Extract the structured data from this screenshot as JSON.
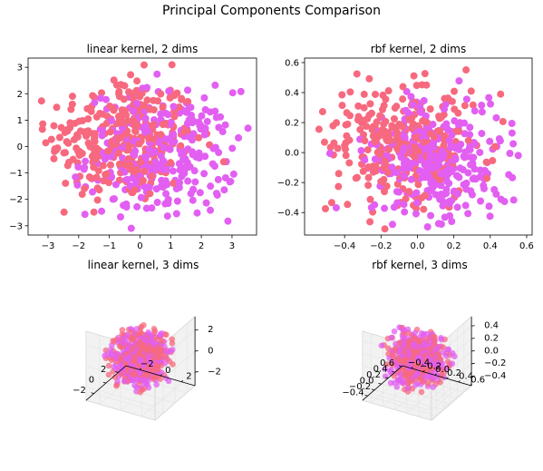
{
  "figure": {
    "suptitle": "Principal Components Comparison"
  },
  "colors": {
    "class_a": "#f7697e",
    "class_b": "#e25ff2",
    "axis": "#000000",
    "pane": "#f2f2f2",
    "pane_edge": "#cfcfcf",
    "grid": "#e6e6e6"
  },
  "chart_data": [
    {
      "type": "scatter",
      "title": "linear kernel, 2 dims",
      "xlabel": "",
      "ylabel": "",
      "xlim": [
        -3.65,
        3.8
      ],
      "ylim": [
        -3.35,
        3.35
      ],
      "xticks": [
        -3,
        -2,
        -1,
        0,
        1,
        2,
        3
      ],
      "yticks": [
        -3,
        -2,
        -1,
        0,
        1,
        2,
        3
      ],
      "point_count_per_series": 300,
      "series": [
        {
          "color": "#f7697e",
          "x_center": -0.6,
          "y_center": 0.3,
          "spread": 1.2
        },
        {
          "color": "#e25ff2",
          "x_center": 0.7,
          "y_center": -0.3,
          "spread": 1.2
        }
      ]
    },
    {
      "type": "scatter",
      "title": "rbf kernel, 2 dims",
      "xlabel": "",
      "ylabel": "",
      "xlim": [
        -0.62,
        0.63
      ],
      "ylim": [
        -0.55,
        0.63
      ],
      "xticks": [
        -0.4,
        -0.2,
        0.0,
        0.2,
        0.4,
        0.6
      ],
      "xtick_labels": [
        "−0.4",
        "−0.2",
        "0.0",
        "0.2",
        "0.4",
        "0.6"
      ],
      "yticks": [
        -0.4,
        -0.2,
        0.0,
        0.2,
        0.4,
        0.6
      ],
      "ytick_labels": [
        "−0.4",
        "−0.2",
        "0.0",
        "0.2",
        "0.4",
        "0.6"
      ],
      "point_count_per_series": 300,
      "series": [
        {
          "color": "#f7697e",
          "x_center": -0.1,
          "y_center": 0.05,
          "spread": 0.2
        },
        {
          "color": "#e25ff2",
          "x_center": 0.12,
          "y_center": -0.05,
          "spread": 0.2
        }
      ]
    },
    {
      "type": "scatter",
      "projection": "3d",
      "title": "linear kernel, 3 dims",
      "xticks": [
        -2,
        0,
        2
      ],
      "yticks": [
        -2,
        0,
        2
      ],
      "zticks": [
        -2,
        0,
        2
      ],
      "xlim": [
        -3.3,
        3.3
      ],
      "ylim": [
        -3.3,
        3.3
      ],
      "zlim": [
        -3.3,
        3.3
      ],
      "point_count_per_series": 300,
      "series": [
        {
          "color": "#f7697e",
          "spread": 1.2
        },
        {
          "color": "#e25ff2",
          "spread": 1.2
        }
      ]
    },
    {
      "type": "scatter",
      "projection": "3d",
      "title": "rbf kernel, 3 dims",
      "xticks": [
        -0.4,
        -0.2,
        0.0,
        0.2,
        0.4,
        0.6
      ],
      "xtick_labels": [
        "−0.4",
        "−0.2",
        "0.0",
        "0.2",
        "0.4",
        "0.6"
      ],
      "yticks": [
        -0.4,
        -0.2,
        0.0,
        0.2,
        0.4,
        0.6
      ],
      "ytick_labels": [
        "−0.4",
        "−0.2",
        "0.0",
        "0.2",
        "0.4",
        "0.6"
      ],
      "zticks": [
        -0.4,
        -0.2,
        0.0,
        0.2,
        0.4
      ],
      "ztick_labels": [
        "−0.4",
        "−0.2",
        "0.0",
        "0.2",
        "0.4"
      ],
      "xlim": [
        -0.55,
        0.62
      ],
      "ylim": [
        -0.55,
        0.62
      ],
      "zlim": [
        -0.55,
        0.55
      ],
      "point_count_per_series": 300,
      "series": [
        {
          "color": "#f7697e",
          "spread": 0.2
        },
        {
          "color": "#e25ff2",
          "spread": 0.2
        }
      ]
    }
  ]
}
